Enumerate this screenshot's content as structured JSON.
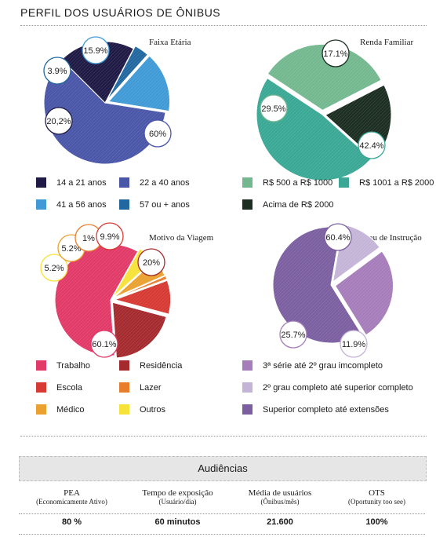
{
  "title": "PERFIL DOS USUÁRIOS DE ÔNIBUS",
  "chart_data": [
    {
      "type": "pie",
      "title": "Faixa Etária",
      "slices": [
        {
          "label": "22 a 40 anos",
          "value": 60,
          "label_text": "60%",
          "color": "#4a56a8"
        },
        {
          "label": "14 a 21 anos",
          "value": 20.2,
          "label_text": "20,2%",
          "color": "#1f1a45"
        },
        {
          "label": "57 ou + anos",
          "value": 3.9,
          "label_text": "3.9%",
          "color": "#2268a0"
        },
        {
          "label": "41 a 56 anos",
          "value": 15.9,
          "label_text": "15.9%",
          "color": "#3f9ad6"
        }
      ],
      "legend": [
        "14 a 21 anos",
        "22 a 40 anos",
        "41 a 56 anos",
        "57 ou + anos"
      ]
    },
    {
      "type": "pie",
      "title": "Renda Familiar",
      "slices": [
        {
          "label": "R$ 1001 a R$ 2000",
          "value": 42.4,
          "label_text": "42.4%",
          "color": "#3aa895"
        },
        {
          "label": "R$ 500 a R$ 1000",
          "value": 29.5,
          "label_text": "29.5%",
          "color": "#73b88f"
        },
        {
          "label": "Acima de R$ 2000",
          "value": 17.1,
          "label_text": "17.1%",
          "color": "#1c2e22"
        }
      ],
      "legend": [
        "R$ 500 a R$ 1000",
        "R$ 1001 a R$ 2000",
        "Acima de R$ 2000"
      ]
    },
    {
      "type": "pie",
      "title": "Motivo da Viagem",
      "slices": [
        {
          "label": "Trabalho",
          "value": 60.1,
          "label_text": "60.1%",
          "color": "#e23a68"
        },
        {
          "label": "Outros",
          "value": 5.2,
          "label_text": "5.2%",
          "color": "#f7e23a"
        },
        {
          "label": "Médico",
          "value": 5.2,
          "label_text": "5.2%",
          "color": "#eaa130"
        },
        {
          "label": "Lazer",
          "value": 1,
          "label_text": "1%",
          "color": "#e87d2c"
        },
        {
          "label": "Escola",
          "value": 9.9,
          "label_text": "9.9%",
          "color": "#d63a33"
        },
        {
          "label": "Residência",
          "value": 20,
          "label_text": "20%",
          "color": "#a52a2e"
        }
      ],
      "legend": [
        "Trabalho",
        "Residência",
        "Escola",
        "Lazer",
        "Médico",
        "Outros"
      ]
    },
    {
      "type": "pie",
      "title": "Grau de Instrução",
      "slices": [
        {
          "label": "Superior completo até  extensões",
          "value": 60.4,
          "label_text": "60.4%",
          "color": "#7b5fa0"
        },
        {
          "label": "2º grau completo até superior completo",
          "value": 11.9,
          "label_text": "11.9%",
          "color": "#c4b5d8"
        },
        {
          "label": "3ª série até 2º grau imcompleto",
          "value": 25.7,
          "label_text": "25.7%",
          "color": "#a67dba"
        }
      ],
      "legend": [
        "3ª série até 2º grau imcompleto",
        "2º grau completo até superior completo",
        "Superior completo até  extensões"
      ]
    }
  ],
  "audiencias": {
    "title": "Audiências",
    "columns": [
      {
        "header": "PEA",
        "sub": "(Economicamente Ativo)",
        "value": "80 %"
      },
      {
        "header": "Tempo de exposição",
        "sub": "(Usuário/dia)",
        "value": "60 minutos"
      },
      {
        "header": "Média de usuários",
        "sub": "(Ônibus/mês)",
        "value": "21.600"
      },
      {
        "header": "OTS",
        "sub": "(Oportunity too see)",
        "value": "100%"
      }
    ]
  }
}
